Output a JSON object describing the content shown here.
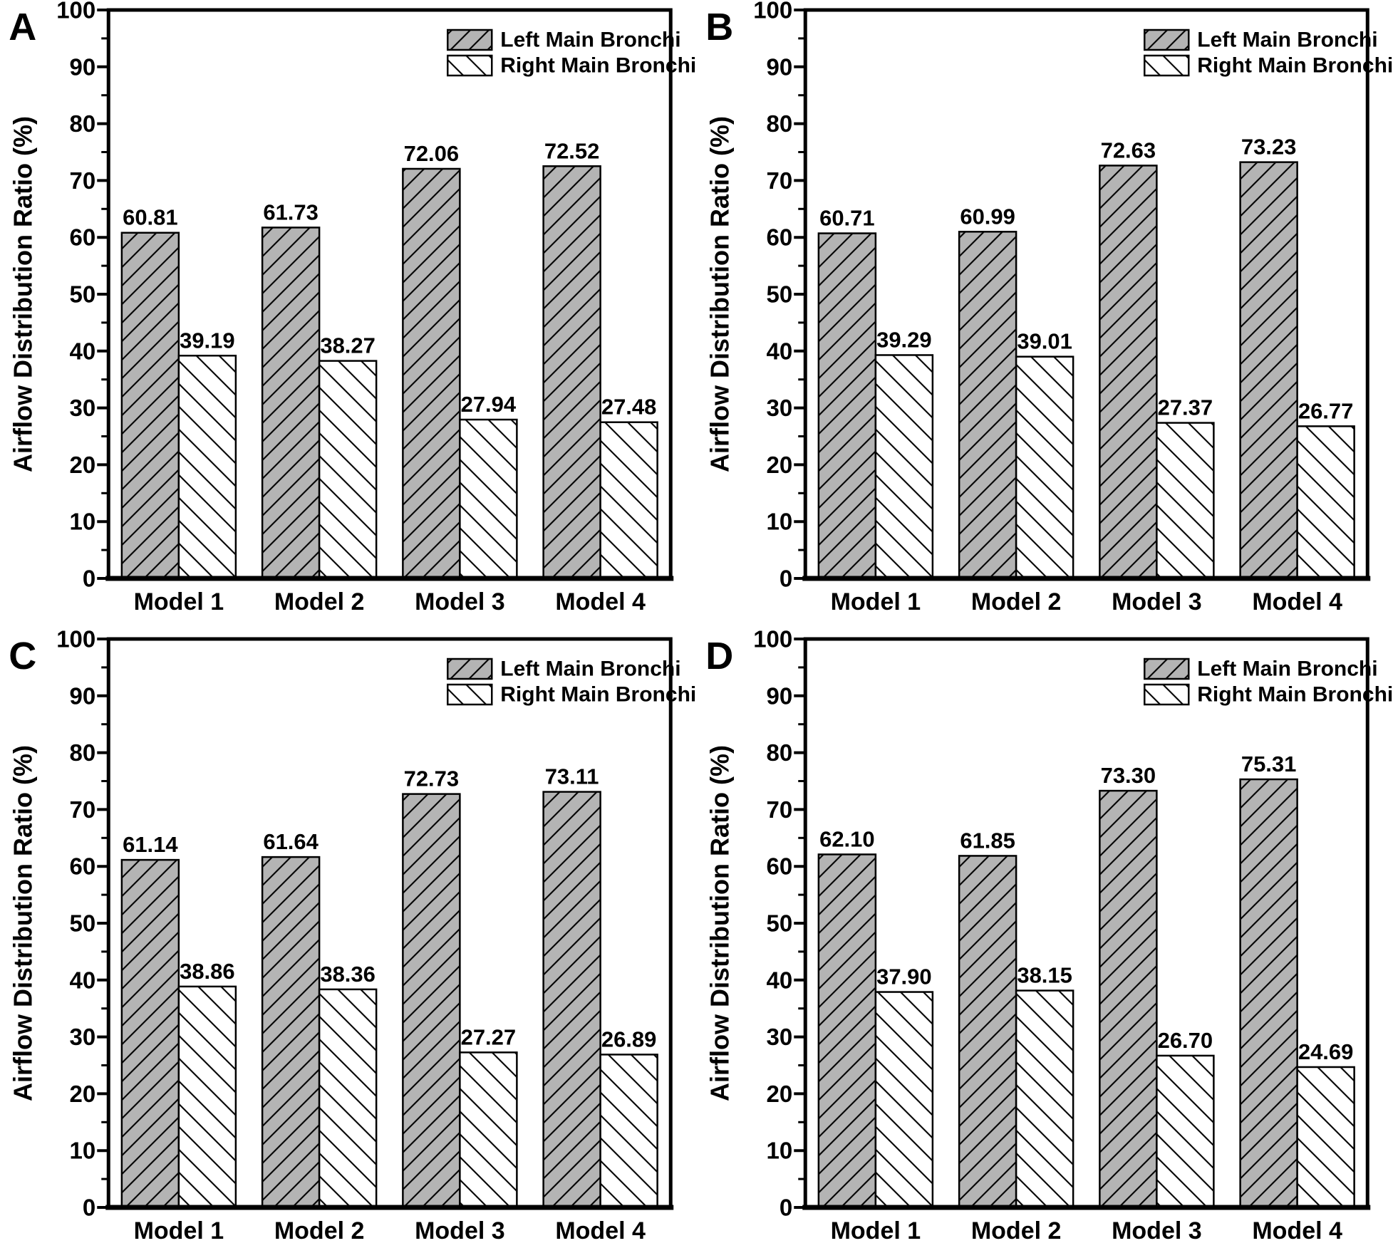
{
  "figure": {
    "background": "#ffffff"
  },
  "colors": {
    "left_fill": "#b4b4b4",
    "right_fill": "#ffffff",
    "hatch": "#000000",
    "axis": "#000000",
    "text": "#000000"
  },
  "legend": {
    "entries": [
      {
        "label": "Left Main Bronchi",
        "swatch": "gray-forward-hatch"
      },
      {
        "label": "Right Main Bronchi",
        "swatch": "white-backward-hatch"
      }
    ],
    "position": "top-right"
  },
  "chart_data": [
    {
      "panel": "A",
      "type": "bar",
      "title": "",
      "xlabel": "",
      "ylabel": "Airflow Distribution Ratio (%)",
      "ylim": [
        0,
        100
      ],
      "yticks": [
        0,
        10,
        20,
        30,
        40,
        50,
        60,
        70,
        80,
        90,
        100
      ],
      "minor_tick_step": 5,
      "grid": false,
      "legend_position": "top-right",
      "categories": [
        "Model 1",
        "Model 2",
        "Model 3",
        "Model 4"
      ],
      "series": [
        {
          "name": "Left Main Bronchi",
          "values": [
            60.81,
            61.73,
            72.06,
            72.52
          ]
        },
        {
          "name": "Right Main Bronchi",
          "values": [
            39.19,
            38.27,
            27.94,
            27.48
          ]
        }
      ]
    },
    {
      "panel": "B",
      "type": "bar",
      "title": "",
      "xlabel": "",
      "ylabel": "Airflow Distribution Ratio (%)",
      "ylim": [
        0,
        100
      ],
      "yticks": [
        0,
        10,
        20,
        30,
        40,
        50,
        60,
        70,
        80,
        90,
        100
      ],
      "minor_tick_step": 5,
      "grid": false,
      "legend_position": "top-right",
      "categories": [
        "Model 1",
        "Model 2",
        "Model 3",
        "Model 4"
      ],
      "series": [
        {
          "name": "Left Main Bronchi",
          "values": [
            60.71,
            60.99,
            72.63,
            73.23
          ]
        },
        {
          "name": "Right Main Bronchi",
          "values": [
            39.29,
            39.01,
            27.37,
            26.77
          ]
        }
      ]
    },
    {
      "panel": "C",
      "type": "bar",
      "title": "",
      "xlabel": "",
      "ylabel": "Airflow Distribution Ratio (%)",
      "ylim": [
        0,
        100
      ],
      "yticks": [
        0,
        10,
        20,
        30,
        40,
        50,
        60,
        70,
        80,
        90,
        100
      ],
      "minor_tick_step": 5,
      "grid": false,
      "legend_position": "top-right",
      "categories": [
        "Model 1",
        "Model 2",
        "Model 3",
        "Model 4"
      ],
      "series": [
        {
          "name": "Left Main Bronchi",
          "values": [
            61.14,
            61.64,
            72.73,
            73.11
          ]
        },
        {
          "name": "Right Main Bronchi",
          "values": [
            38.86,
            38.36,
            27.27,
            26.89
          ]
        }
      ]
    },
    {
      "panel": "D",
      "type": "bar",
      "title": "",
      "xlabel": "",
      "ylabel": "Airflow Distribution Ratio (%)",
      "ylim": [
        0,
        100
      ],
      "yticks": [
        0,
        10,
        20,
        30,
        40,
        50,
        60,
        70,
        80,
        90,
        100
      ],
      "minor_tick_step": 5,
      "grid": false,
      "legend_position": "top-right",
      "categories": [
        "Model 1",
        "Model 2",
        "Model 3",
        "Model 4"
      ],
      "series": [
        {
          "name": "Left Main Bronchi",
          "values": [
            62.1,
            61.85,
            73.3,
            75.31
          ]
        },
        {
          "name": "Right Main Bronchi",
          "values": [
            37.9,
            38.15,
            26.7,
            24.69
          ]
        }
      ]
    }
  ]
}
